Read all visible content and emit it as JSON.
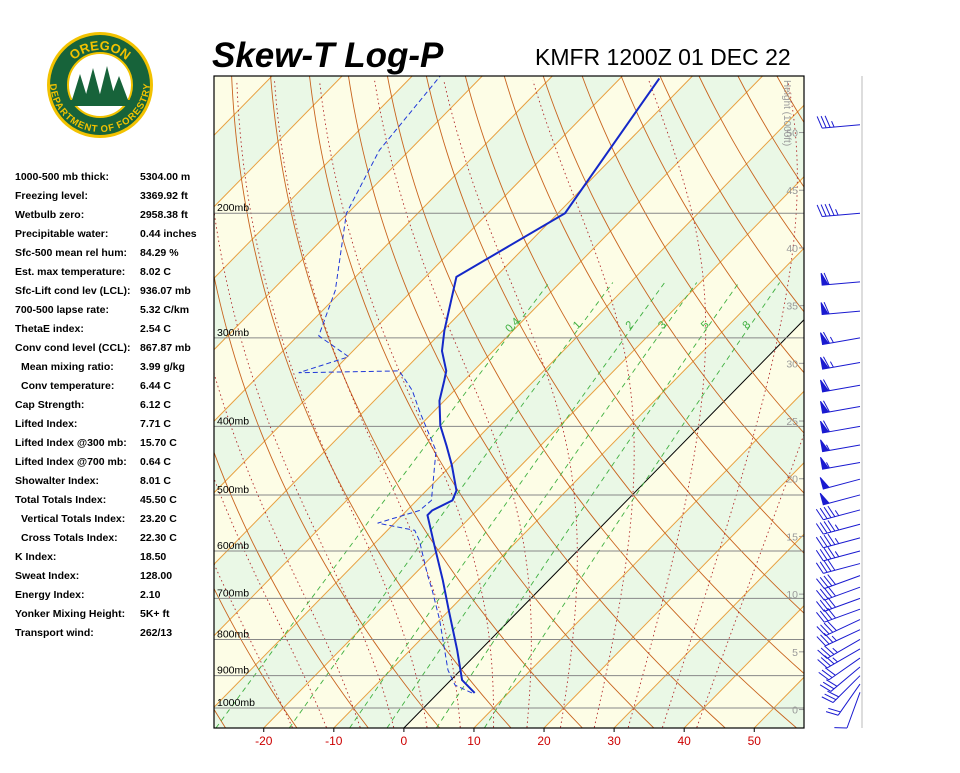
{
  "logo": {
    "top": "OREGON",
    "bottom": "DEPARTMENT OF FORESTRY"
  },
  "title": "Skew-T Log-P",
  "station": "KMFR 1200Z 01 DEC 22",
  "indices": [
    {
      "label": "1000-500 mb thick:",
      "value": "5304.00 m"
    },
    {
      "label": "Freezing level:",
      "value": "3369.92 ft"
    },
    {
      "label": "Wetbulb zero:",
      "value": "2958.38 ft"
    },
    {
      "label": "Precipitable water:",
      "value": "0.44 inches"
    },
    {
      "label": "Sfc-500 mean rel hum:",
      "value": "84.29 %"
    },
    {
      "label": "Est. max temperature:",
      "value": "8.02 C"
    },
    {
      "label": "Sfc-Lift cond lev (LCL):",
      "value": "936.07 mb"
    },
    {
      "label": "700-500 lapse rate:",
      "value": "5.32 C/km"
    },
    {
      "label": "ThetaE index:",
      "value": "2.54 C"
    },
    {
      "label": "Conv cond level (CCL):",
      "value": "867.87 mb"
    },
    {
      "label": "Mean mixing ratio:",
      "value": "3.99 g/kg",
      "indent": true
    },
    {
      "label": "Conv temperature:",
      "value": "6.44 C",
      "indent": true
    },
    {
      "label": "Cap Strength:",
      "value": "6.12 C"
    },
    {
      "label": "Lifted Index:",
      "value": "7.71 C"
    },
    {
      "label": "Lifted Index @300 mb:",
      "value": "15.70 C"
    },
    {
      "label": "Lifted Index @700 mb:",
      "value": "0.64 C"
    },
    {
      "label": "Showalter Index:",
      "value": "8.01 C"
    },
    {
      "label": "Total Totals Index:",
      "value": "45.50 C"
    },
    {
      "label": "Vertical Totals Index:",
      "value": "23.20 C",
      "indent": true
    },
    {
      "label": "Cross Totals Index:",
      "value": "22.30 C",
      "indent": true
    },
    {
      "label": "K Index:",
      "value": "18.50"
    },
    {
      "label": "Sweat Index:",
      "value": "128.00"
    },
    {
      "label": "Energy Index:",
      "value": "2.10"
    },
    {
      "label": "Yonker Mixing Height:",
      "value": "5K+ ft"
    },
    {
      "label": "Transport wind:",
      "value": "262/13"
    }
  ],
  "chart_data": {
    "type": "skewt",
    "xlim": [
      -27.1,
      57.1
    ],
    "xticks": [
      -20,
      -10,
      0,
      10,
      20,
      30,
      40,
      50
    ],
    "ylim": [
      1067,
      128
    ],
    "log_y": true,
    "yticks": [
      {
        "value": 1000,
        "label": "1000mb"
      },
      {
        "value": 900,
        "label": "900mb"
      },
      {
        "value": 800,
        "label": "800mb"
      },
      {
        "value": 700,
        "label": "700mb"
      },
      {
        "value": 600,
        "label": "600mb"
      },
      {
        "value": 500,
        "label": "500mb"
      },
      {
        "value": 400,
        "label": "400mb"
      },
      {
        "value": 300,
        "label": "300mb"
      },
      {
        "value": 200,
        "label": "200mb"
      }
    ],
    "y2label": "Height (1000ft)",
    "y2lim": [
      -1.6,
      54.9
    ],
    "y2ticks": [
      0,
      5,
      10,
      15,
      20,
      25,
      30,
      35,
      40,
      45,
      50
    ],
    "mixing_ratios": [
      0.4,
      1,
      2,
      3,
      5,
      8
    ],
    "series": [
      {
        "color": "#1428c8",
        "line_style": "solid",
        "pressure": [
          952,
          913,
          828,
          727,
          660,
          589,
          534,
          526,
          509,
          493,
          454,
          426,
          399,
          368,
          345,
          334,
          313,
          293,
          246,
          200,
          129
        ],
        "values": [
          5.2,
          1.6,
          -3.3,
          -10.1,
          -15.1,
          -21.2,
          -26.4,
          -26.4,
          -24.9,
          -25.7,
          -29.9,
          -33.4,
          -37.1,
          -40.7,
          -42.8,
          -43.9,
          -47.3,
          -49.8,
          -55.6,
          -49.0,
          -54.4
        ]
      },
      {
        "color": "#2038d8",
        "line_style": "dashed",
        "pressure": [
          952,
          928,
          884,
          751,
          682,
          649,
          580,
          561,
          548,
          526,
          509,
          433,
          380,
          356,
          334,
          336,
          319,
          298,
          257,
          200,
          163,
          128
        ],
        "values": [
          4.8,
          1.3,
          -1.8,
          -10.0,
          -15.2,
          -18.0,
          -24.0,
          -26.1,
          -32.4,
          -28.2,
          -27.9,
          -34.2,
          -42.2,
          -46.0,
          -50.6,
          -64.7,
          -59.8,
          -67.0,
          -71.0,
          -80.2,
          -84.3,
          -86.0
        ]
      }
    ],
    "winds": {
      "color": "#1a1ad0",
      "pressure": [
        950,
        925,
        900,
        875,
        850,
        825,
        800,
        775,
        750,
        725,
        700,
        675,
        650,
        625,
        600,
        575,
        550,
        525,
        500,
        475,
        450,
        425,
        400,
        375,
        350,
        325,
        300,
        275,
        250,
        200,
        150
      ],
      "direction": [
        200,
        215,
        225,
        230,
        235,
        240,
        240,
        245,
        245,
        250,
        250,
        250,
        250,
        255,
        255,
        255,
        255,
        255,
        255,
        255,
        260,
        260,
        260,
        260,
        260,
        260,
        260,
        265,
        265,
        265,
        265
      ],
      "speed": [
        10,
        20,
        30,
        30,
        30,
        35,
        35,
        35,
        40,
        40,
        40,
        40,
        40,
        40,
        45,
        45,
        45,
        45,
        50,
        50,
        55,
        55,
        60,
        60,
        60,
        65,
        65,
        60,
        60,
        45,
        35
      ]
    }
  }
}
